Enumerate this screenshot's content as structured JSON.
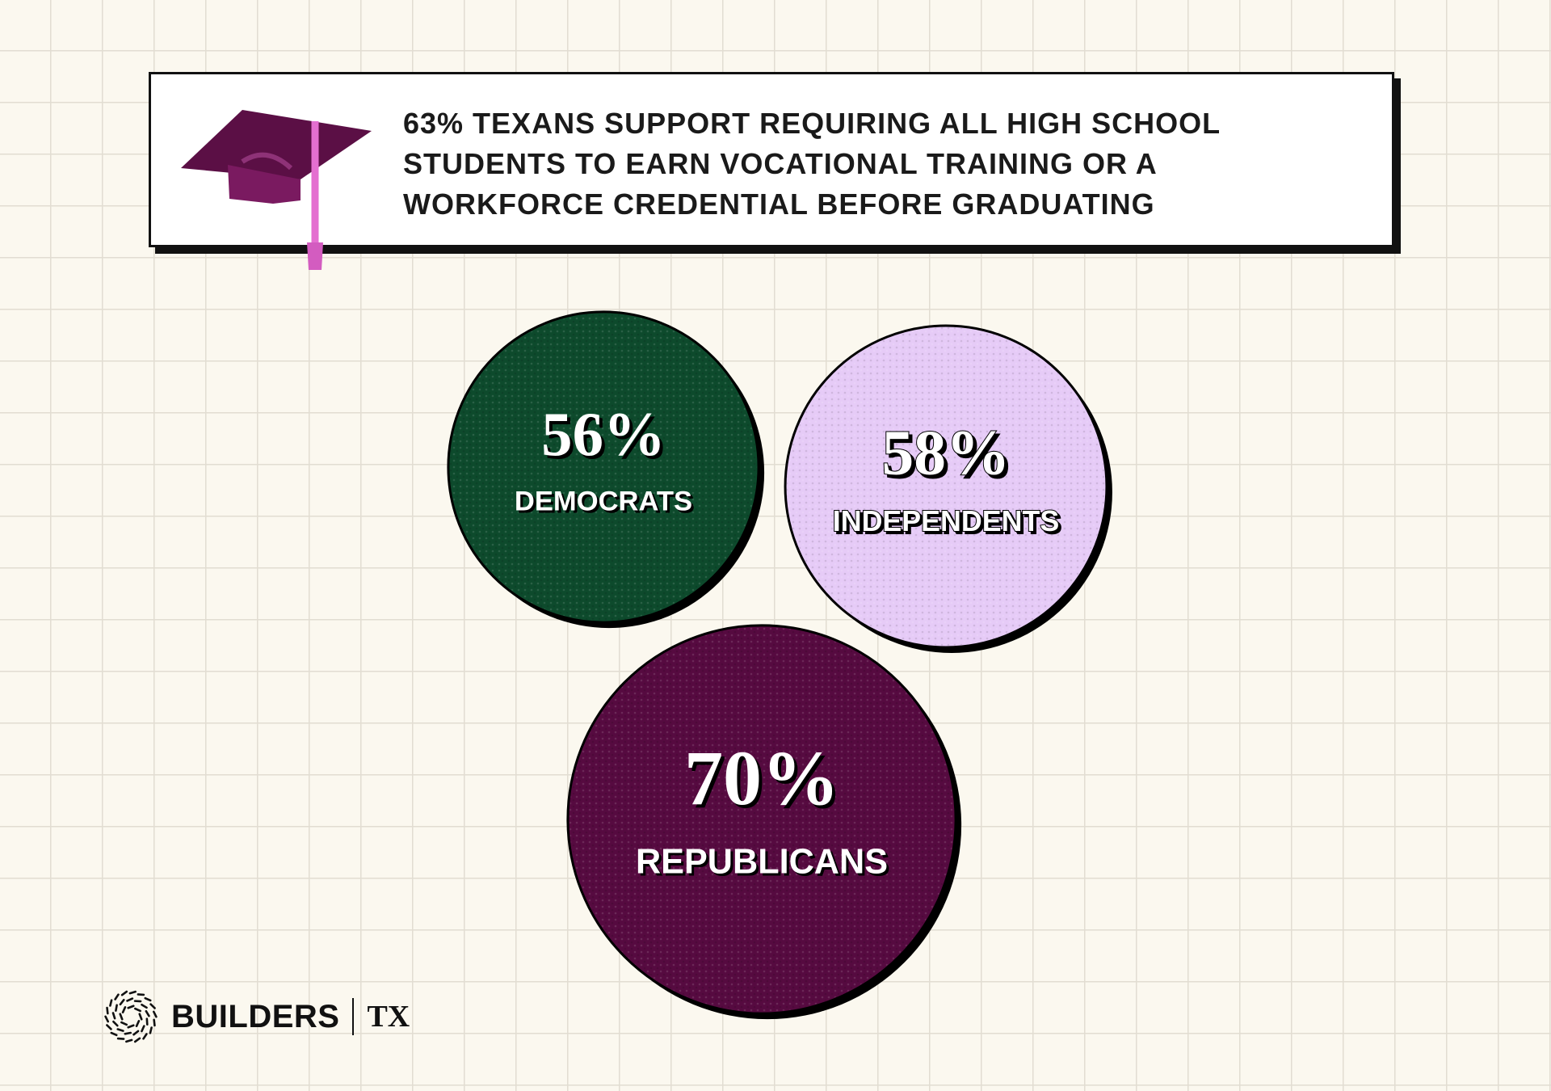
{
  "chart_data": {
    "type": "bubble",
    "title": "63% TEXANS SUPPORT REQUIRING ALL HIGH SCHOOL STUDENTS TO EARN VOCATIONAL TRAINING OR A WORKFORCE CREDENTIAL BEFORE GRADUATING",
    "categories": [
      "DEMOCRATS",
      "INDEPENDENTS",
      "REPUBLICANS"
    ],
    "values": [
      56,
      58,
      70
    ],
    "value_labels": [
      "56%",
      "58%",
      "70%"
    ],
    "colors": [
      "#0d4a2c",
      "#e6cbf7",
      "#560a40"
    ]
  },
  "brand": {
    "name": "BUILDERS",
    "region": "TX"
  }
}
